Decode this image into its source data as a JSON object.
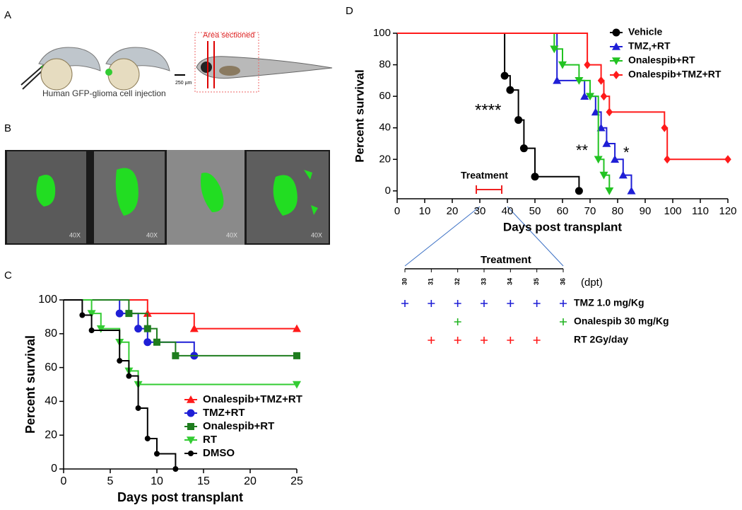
{
  "panel_labels": [
    "A",
    "B",
    "C",
    "D"
  ],
  "figure_a": {
    "caption": "Human GFP-glioma cell injection",
    "area_label": "Area sectioned",
    "scale_label": "250 µm"
  },
  "figure_b": {
    "magnifications": [
      "40X",
      "40X",
      "40X",
      "40X"
    ]
  },
  "chart_data": [
    {
      "type": "line",
      "step": true,
      "xlim": [
        0,
        25
      ],
      "ylim": [
        0,
        100
      ],
      "xticks": [
        0,
        5,
        10,
        15,
        20,
        25
      ],
      "yticks": [
        0,
        20,
        40,
        60,
        80,
        100
      ],
      "xlabel": "Days post transplant",
      "ylabel": "Percent survival",
      "legend": "lower right",
      "series": [
        {
          "name": "Onalespib+TMZ+RT",
          "color": "#ff1a1a",
          "marker": "triangle-up",
          "x": [
            0,
            9,
            14,
            25
          ],
          "values": [
            100,
            92,
            83,
            83
          ]
        },
        {
          "name": "TMZ+RT",
          "color": "#1f1fd6",
          "marker": "circle",
          "x": [
            0,
            6,
            8,
            9,
            14
          ],
          "values": [
            100,
            92,
            83,
            75,
            67
          ]
        },
        {
          "name": "Onalespib+RT",
          "color": "#1e7d1e",
          "marker": "square",
          "x": [
            0,
            7,
            9,
            10,
            12,
            25
          ],
          "values": [
            100,
            92,
            83,
            75,
            67,
            67
          ]
        },
        {
          "name": "RT",
          "color": "#33cc33",
          "marker": "triangle-down",
          "x": [
            0,
            3,
            4,
            6,
            7,
            8,
            25
          ],
          "values": [
            100,
            92,
            83,
            75,
            58,
            50,
            50
          ]
        },
        {
          "name": "DMSO",
          "color": "#000000",
          "marker": "circle-small",
          "x": [
            0,
            2,
            3,
            6,
            7,
            8,
            9,
            10,
            12
          ],
          "values": [
            100,
            91,
            82,
            64,
            55,
            36,
            18,
            9,
            0
          ]
        }
      ]
    },
    {
      "type": "line",
      "step": true,
      "xlim": [
        0,
        120
      ],
      "ylim": [
        -5,
        100
      ],
      "xticks": [
        0,
        10,
        20,
        30,
        40,
        50,
        60,
        70,
        80,
        90,
        100,
        110,
        120
      ],
      "yticks": [
        0,
        20,
        40,
        60,
        80,
        100
      ],
      "xlabel": "Days post transplant",
      "ylabel": "Percent survival",
      "legend": "upper right",
      "annotations": [
        "****",
        "**",
        "*"
      ],
      "treatment_label": "Treatment",
      "series": [
        {
          "name": "Vehicle",
          "color": "#000000",
          "marker": "circle",
          "x": [
            0,
            39,
            41,
            44,
            46,
            50,
            66
          ],
          "values": [
            100,
            73,
            64,
            45,
            27,
            9,
            0
          ]
        },
        {
          "name": "TMZ,+RT",
          "color": "#1f1fd6",
          "marker": "triangle-up",
          "x": [
            0,
            58,
            68,
            72,
            74,
            76,
            79,
            82,
            85
          ],
          "values": [
            100,
            70,
            60,
            50,
            40,
            30,
            20,
            10,
            0
          ]
        },
        {
          "name": "Onalespib+RT",
          "color": "#22c322",
          "marker": "triangle-down",
          "x": [
            0,
            57,
            60,
            66,
            70,
            73,
            75,
            77
          ],
          "values": [
            100,
            90,
            80,
            70,
            60,
            20,
            10,
            0
          ]
        },
        {
          "name": "Onalespib+TMZ+RT",
          "color": "#ff1a1a",
          "marker": "diamond",
          "x": [
            0,
            69,
            74,
            75,
            77,
            97,
            98,
            120
          ],
          "values": [
            100,
            80,
            70,
            60,
            50,
            40,
            20,
            20
          ]
        }
      ]
    }
  ],
  "schedule": {
    "title": "Treatment",
    "unit": "(dpt)",
    "days": [
      30,
      31,
      32,
      33,
      34,
      35,
      36
    ],
    "rows": [
      {
        "label": "TMZ 1.0 mg/Kg",
        "color": "#1f1fd6",
        "days": [
          30,
          31,
          32,
          33,
          34,
          35,
          36
        ]
      },
      {
        "label": "Onalespib 30 mg/Kg",
        "color": "#22b422",
        "days": [
          32,
          36
        ]
      },
      {
        "label": "RT 2Gy/day",
        "color": "#ff1a1a",
        "days": [
          31,
          32,
          33,
          34,
          35
        ]
      }
    ]
  }
}
